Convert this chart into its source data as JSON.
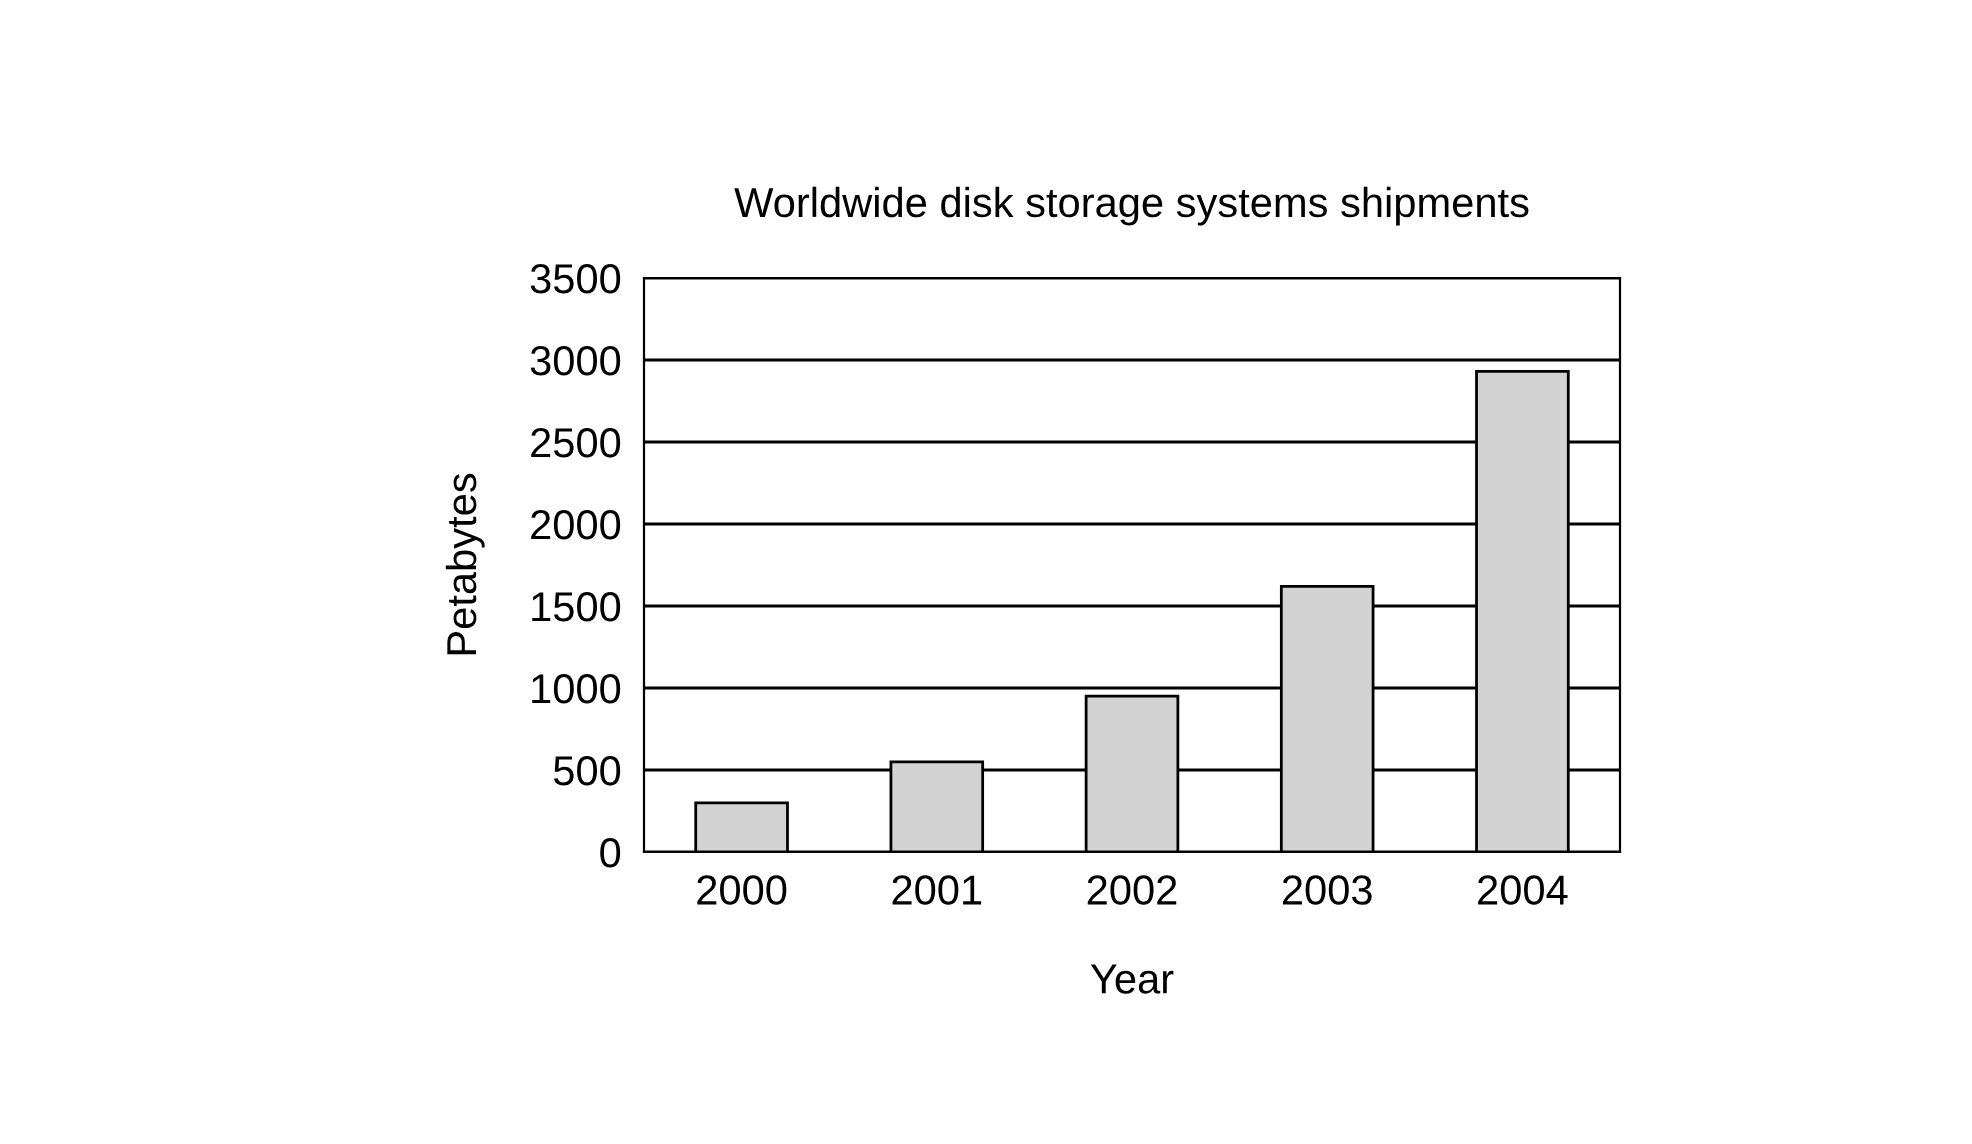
{
  "chart_data": {
    "type": "bar",
    "title": "Worldwide disk storage systems shipments",
    "xlabel": "Year",
    "ylabel": "Petabytes",
    "categories": [
      "2000",
      "2001",
      "2002",
      "2003",
      "2004"
    ],
    "values": [
      300,
      550,
      950,
      1620,
      2930
    ],
    "color": "#d3d3d3",
    "ylim": [
      0,
      3500
    ],
    "yticks": [
      0,
      500,
      1000,
      1500,
      2000,
      2500,
      3000,
      3500
    ],
    "grid": "y",
    "legend": false
  }
}
